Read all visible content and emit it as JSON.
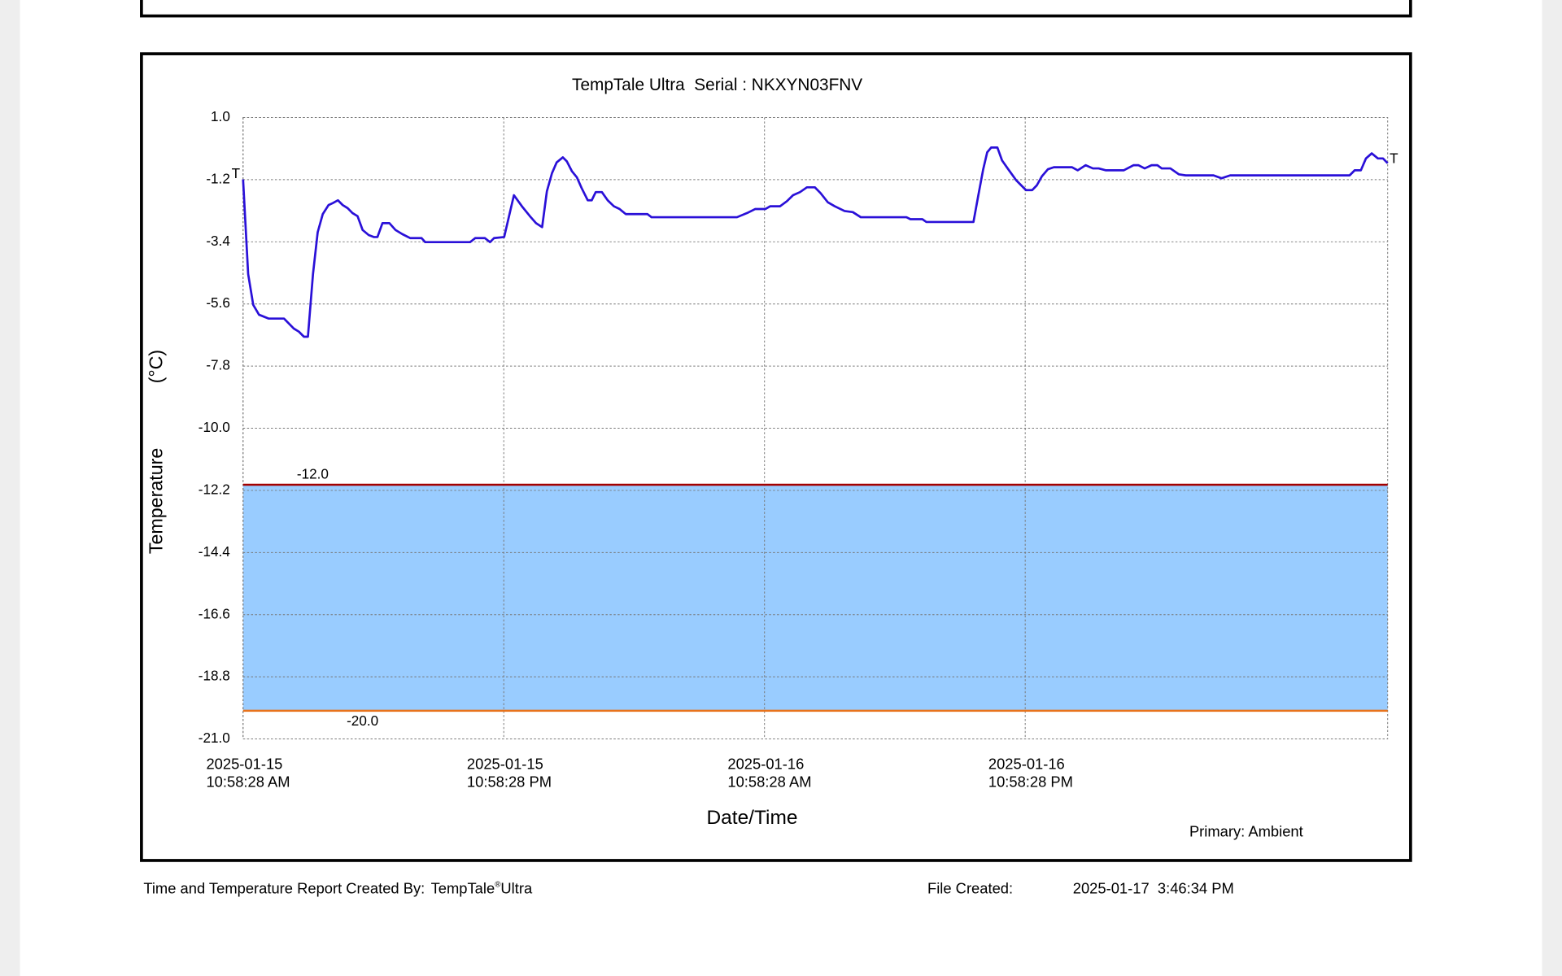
{
  "chart_data": {
    "type": "line",
    "title": "TempTale Ultra  Serial : NKXYN03FNV",
    "xlabel": "Date/Time",
    "ylabel": "Temperature",
    "yunit": "(°C)",
    "annotation": "Primary: Ambient",
    "color": "#2a10d8",
    "line_end_labels": [
      "T",
      "T"
    ],
    "limits": [
      {
        "value": -12,
        "label": "-12.0",
        "color": "#a30000"
      },
      {
        "value": -20,
        "label": "-20.0",
        "color": "#e8731c"
      }
    ],
    "band_color": "#99ccff",
    "grid": true,
    "ylim": [
      -21,
      1
    ],
    "yticks": [
      {
        "value": 1,
        "label": "1.0"
      },
      -1.2,
      -3.4,
      -5.6,
      -7.8,
      {
        "value": -10,
        "label": "-10.0"
      },
      -12.2,
      -14.4,
      -16.6,
      -18.8,
      {
        "value": -21,
        "label": "-21.0"
      }
    ],
    "xlim": [
      "2025-01-15T10:58:28",
      "2025-01-17T15:39:28"
    ],
    "xticks": [
      {
        "value": "2025-01-15T10:58:28",
        "label": [
          "2025-01-15",
          "10:58:28 AM"
        ]
      },
      {
        "value": "2025-01-15T22:58:28",
        "label": [
          "2025-01-15",
          "10:58:28 PM"
        ]
      },
      {
        "value": "2025-01-16T10:58:28",
        "label": [
          "2025-01-16",
          "10:58:28 AM"
        ]
      },
      {
        "value": "2025-01-16T22:58:28",
        "label": [
          "2025-01-16",
          "10:58:28 PM"
        ]
      }
    ],
    "x": [
      "2025-01-15T10:58:28",
      "2025-01-15T11:12:28",
      "2025-01-15T11:26:28",
      "2025-01-15T11:42:28",
      "2025-01-15T12:09:28",
      "2025-01-15T12:51:28",
      "2025-01-15T13:18:28",
      "2025-01-15T13:32:28",
      "2025-01-15T13:46:28",
      "2025-01-15T13:57:28",
      "2025-01-15T14:11:28",
      "2025-01-15T14:24:28",
      "2025-01-15T14:38:28",
      "2025-01-15T14:54:28",
      "2025-01-15T15:06:28",
      "2025-01-15T15:20:28",
      "2025-01-15T15:33:28",
      "2025-01-15T15:47:28",
      "2025-01-15T16:00:28",
      "2025-01-15T16:14:28",
      "2025-01-15T16:28:28",
      "2025-01-15T16:45:28",
      "2025-01-15T16:59:28",
      "2025-01-15T17:09:28",
      "2025-01-15T17:23:28",
      "2025-01-15T17:42:28",
      "2025-01-15T17:59:28",
      "2025-01-15T18:18:28",
      "2025-01-15T18:40:28",
      "2025-01-15T19:11:28",
      "2025-01-15T19:21:28",
      "2025-01-15T21:25:28",
      "2025-01-15T21:39:28",
      "2025-01-15T22:06:28",
      "2025-01-15T22:20:28",
      "2025-01-15T22:31:28",
      "2025-01-15T22:59:28",
      "2025-01-15T23:26:28",
      "2025-01-15T23:48:28",
      "2025-01-16T00:10:28",
      "2025-01-16T00:27:28",
      "2025-01-16T00:44:28",
      "2025-01-16T00:57:28",
      "2025-01-16T01:11:28",
      "2025-01-16T01:24:28",
      "2025-01-16T01:41:28",
      "2025-01-16T01:52:28",
      "2025-01-16T02:06:28",
      "2025-01-16T02:20:28",
      "2025-01-16T02:33:28",
      "2025-01-16T02:50:28",
      "2025-01-16T03:01:28",
      "2025-01-16T03:12:28",
      "2025-01-16T03:29:28",
      "2025-01-16T03:45:28",
      "2025-01-16T04:02:28",
      "2025-01-16T04:18:28",
      "2025-01-16T04:35:28",
      "2025-01-16T04:54:28",
      "2025-01-16T05:35:28",
      "2025-01-16T05:46:28",
      "2025-01-16T09:42:28",
      "2025-01-16T10:10:28",
      "2025-01-16T10:32:28",
      "2025-01-16T11:00:28",
      "2025-01-16T11:14:28",
      "2025-01-16T11:41:28",
      "2025-01-16T12:00:28",
      "2025-01-16T12:17:28",
      "2025-01-16T12:36:28",
      "2025-01-16T12:55:28",
      "2025-01-16T13:17:28",
      "2025-01-16T13:33:28",
      "2025-01-16T13:53:28",
      "2025-01-16T14:12:28",
      "2025-01-16T14:39:28",
      "2025-01-16T15:02:28",
      "2025-01-16T15:24:28",
      "2025-01-16T17:30:28",
      "2025-01-16T17:41:28",
      "2025-01-16T18:14:28",
      "2025-01-16T18:25:28",
      "2025-01-16T20:35:28",
      "2025-01-16T20:48:28",
      "2025-01-16T21:02:28",
      "2025-01-16T21:13:28",
      "2025-01-16T21:24:28",
      "2025-01-16T21:41:28",
      "2025-01-16T21:54:28",
      "2025-01-16T22:11:28",
      "2025-01-16T22:33:28",
      "2025-01-16T23:00:28",
      "2025-01-16T23:17:28",
      "2025-01-16T23:30:28",
      "2025-01-16T23:44:28",
      "2025-01-17T00:01:28",
      "2025-01-17T00:17:28",
      "2025-01-17T01:07:28",
      "2025-01-17T01:23:28",
      "2025-01-17T01:45:28",
      "2025-01-17T02:05:28",
      "2025-01-17T02:21:28",
      "2025-01-17T02:41:28",
      "2025-01-17T03:30:28",
      "2025-01-17T03:57:28",
      "2025-01-17T04:11:28",
      "2025-01-17T04:28:28",
      "2025-01-17T04:47:28",
      "2025-01-17T05:03:28",
      "2025-01-17T05:15:28",
      "2025-01-17T05:39:28",
      "2025-01-17T06:02:28",
      "2025-01-17T06:21:28",
      "2025-01-17T07:38:28",
      "2025-01-17T08:00:28",
      "2025-01-17T08:24:28",
      "2025-01-17T13:54:28",
      "2025-01-17T14:08:28",
      "2025-01-17T14:25:28",
      "2025-01-17T14:39:28",
      "2025-01-17T14:55:28",
      "2025-01-17T15:12:28",
      "2025-01-17T15:26:28",
      "2025-01-17T15:39:28"
    ],
    "values": [
      -1.19,
      -4.54,
      -5.63,
      -5.98,
      -6.12,
      -6.12,
      -6.47,
      -6.58,
      -6.76,
      -6.76,
      -4.54,
      -3.06,
      -2.42,
      -2.1,
      -2.03,
      -1.93,
      -2.1,
      -2.21,
      -2.38,
      -2.49,
      -2.98,
      -3.16,
      -3.23,
      -3.23,
      -2.74,
      -2.74,
      -2.98,
      -3.13,
      -3.27,
      -3.27,
      -3.41,
      -3.41,
      -3.27,
      -3.27,
      -3.41,
      -3.27,
      -3.23,
      -1.75,
      -2.14,
      -2.49,
      -2.74,
      -2.88,
      -1.61,
      -0.97,
      -0.59,
      -0.41,
      -0.55,
      -0.9,
      -1.12,
      -1.5,
      -1.93,
      -1.93,
      -1.64,
      -1.64,
      -1.93,
      -2.14,
      -2.24,
      -2.42,
      -2.42,
      -2.42,
      -2.53,
      -2.53,
      -2.38,
      -2.24,
      -2.24,
      -2.14,
      -2.14,
      -1.96,
      -1.75,
      -1.64,
      -1.47,
      -1.47,
      -1.68,
      -2.0,
      -2.14,
      -2.31,
      -2.35,
      -2.53,
      -2.53,
      -2.6,
      -2.6,
      -2.7,
      -2.7,
      -1.79,
      -0.83,
      -0.23,
      -0.06,
      -0.06,
      -0.52,
      -0.83,
      -1.22,
      -1.57,
      -1.57,
      -1.4,
      -1.08,
      -0.83,
      -0.76,
      -0.76,
      -0.87,
      -0.69,
      -0.8,
      -0.8,
      -0.87,
      -0.87,
      -0.69,
      -0.69,
      -0.8,
      -0.69,
      -0.69,
      -0.8,
      -0.8,
      -1.01,
      -1.05,
      -1.05,
      -1.15,
      -1.05,
      -1.05,
      -0.87,
      -0.87,
      -0.45,
      -0.27,
      -0.45,
      -0.45,
      -0.62
    ]
  },
  "footer": {
    "created_by_label": "Time and Temperature Report Created By:",
    "product": "TempTale",
    "reg": "®",
    "product_suffix": "Ultra",
    "file_created_label": "File Created:",
    "file_created": "2025-01-17  3:46:34 PM"
  }
}
